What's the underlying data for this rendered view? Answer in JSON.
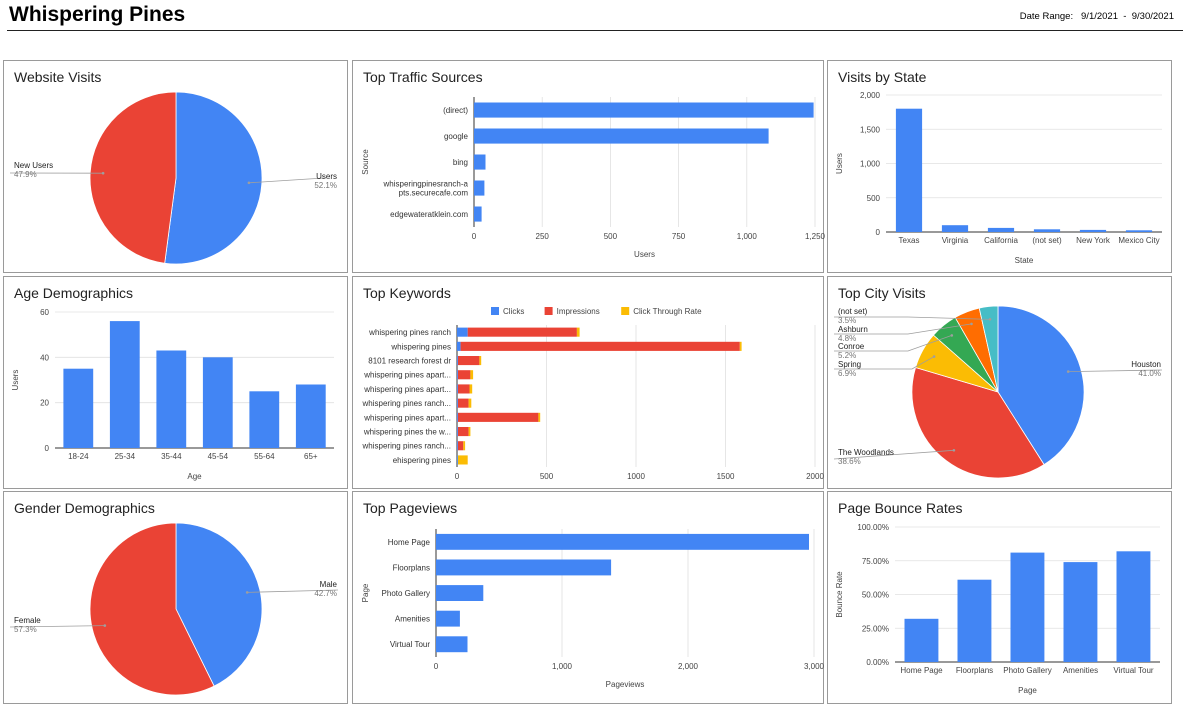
{
  "header": {
    "title": "Whispering Pines",
    "date_range_label": "Date Range:",
    "date_start": "9/1/2021",
    "date_sep": "-",
    "date_end": "9/30/2021"
  },
  "colors": {
    "blue": "#4285f4",
    "red": "#ea4335",
    "yellow": "#fbbc04",
    "green": "#34a853",
    "orange": "#ff6d01",
    "teal": "#46bdc6"
  },
  "panels": {
    "website_visits": "Website Visits",
    "traffic": "Top Traffic Sources",
    "state": "Visits by State",
    "age": "Age Demographics",
    "keywords": "Top Keywords",
    "city": "Top City Visits",
    "gender": "Gender Demographics",
    "pageviews": "Top Pageviews",
    "bounce": "Page Bounce Rates"
  },
  "chart_data": [
    {
      "id": "website_visits",
      "type": "pie",
      "title": "Website Visits",
      "slices": [
        {
          "label": "Users",
          "value": 52.1,
          "pct": "52.1%",
          "color": "#4285f4"
        },
        {
          "label": "New Users",
          "value": 47.9,
          "pct": "47.9%",
          "color": "#ea4335"
        }
      ]
    },
    {
      "id": "traffic",
      "type": "bar",
      "orientation": "horizontal",
      "title": "Top Traffic Sources",
      "categories": [
        "(direct)",
        "google",
        "bing",
        "whisperingpinesranch-apts.securecafe.com",
        "edgewateratklein.com"
      ],
      "category_lines": [
        [
          "(direct)"
        ],
        [
          "google"
        ],
        [
          "bing"
        ],
        [
          "whisperingpinesranch-a",
          "pts.securecafe.com"
        ],
        [
          "edgewateratklein.com"
        ]
      ],
      "values": [
        1245,
        1080,
        42,
        38,
        28
      ],
      "xlabel": "Users",
      "ylabel": "Source",
      "xlim": [
        0,
        1250
      ],
      "ticks": [
        0,
        250,
        500,
        750,
        1000,
        1250
      ],
      "tick_labels": [
        "0",
        "250",
        "500",
        "750",
        "1,000",
        "1,250"
      ]
    },
    {
      "id": "state",
      "type": "bar",
      "title": "Visits by State",
      "categories": [
        "Texas",
        "Virginia",
        "California",
        "(not set)",
        "New York",
        "Mexico City"
      ],
      "values": [
        1800,
        100,
        60,
        40,
        30,
        25
      ],
      "xlabel": "State",
      "ylabel": "Users",
      "ylim": [
        0,
        2000
      ],
      "ticks": [
        0,
        500,
        1000,
        1500,
        2000
      ],
      "tick_labels": [
        "0",
        "500",
        "1,000",
        "1,500",
        "2,000"
      ]
    },
    {
      "id": "age",
      "type": "bar",
      "title": "Age Demographics",
      "categories": [
        "18-24",
        "25-34",
        "35-44",
        "45-54",
        "55-64",
        "65+"
      ],
      "values": [
        35,
        56,
        43,
        40,
        25,
        28
      ],
      "xlabel": "Age",
      "ylabel": "Users",
      "ylim": [
        0,
        60
      ],
      "ticks": [
        0,
        20,
        40,
        60
      ],
      "tick_labels": [
        "0",
        "20",
        "40",
        "60"
      ]
    },
    {
      "id": "keywords",
      "type": "bar",
      "orientation": "horizontal",
      "stacked": true,
      "title": "Top Keywords",
      "categories": [
        "whispering pines ranch",
        "whispering pines",
        "8101 research forest dr",
        "whispering pines apart...",
        "whispering pines apart...",
        "whispering pines ranch...",
        "whispering pines apart...",
        "whispering pines the w...",
        "whispering pines ranch...",
        "ehispering pines"
      ],
      "series": [
        {
          "name": "Clicks",
          "color": "#4285f4",
          "values": [
            60,
            20,
            5,
            5,
            5,
            5,
            5,
            5,
            5,
            5
          ]
        },
        {
          "name": "Impressions",
          "color": "#ea4335",
          "values": [
            610,
            1560,
            120,
            70,
            65,
            60,
            450,
            60,
            30,
            0
          ]
        },
        {
          "name": "Click Through Rate",
          "color": "#fbbc04",
          "values": [
            15,
            10,
            10,
            15,
            15,
            15,
            10,
            10,
            10,
            55
          ]
        }
      ],
      "xlim": [
        0,
        2000
      ],
      "ticks": [
        0,
        500,
        1000,
        1500,
        2000
      ],
      "tick_labels": [
        "0",
        "500",
        "1000",
        "1500",
        "2000"
      ]
    },
    {
      "id": "city",
      "type": "pie",
      "title": "Top City Visits",
      "slices": [
        {
          "label": "Houston",
          "value": 41.0,
          "pct": "41.0%",
          "color": "#4285f4"
        },
        {
          "label": "The Woodlands",
          "value": 38.6,
          "pct": "38.6%",
          "color": "#ea4335"
        },
        {
          "label": "Spring",
          "value": 6.9,
          "pct": "6.9%",
          "color": "#fbbc04"
        },
        {
          "label": "Conroe",
          "value": 5.2,
          "pct": "5.2%",
          "color": "#34a853"
        },
        {
          "label": "Ashburn",
          "value": 4.8,
          "pct": "4.8%",
          "color": "#ff6d01"
        },
        {
          "label": "(not set)",
          "value": 3.5,
          "pct": "3.5%",
          "color": "#46bdc6"
        }
      ]
    },
    {
      "id": "gender",
      "type": "pie",
      "title": "Gender Demographics",
      "slices": [
        {
          "label": "Male",
          "value": 42.7,
          "pct": "42.7%",
          "color": "#4285f4"
        },
        {
          "label": "Female",
          "value": 57.3,
          "pct": "57.3%",
          "color": "#ea4335"
        }
      ]
    },
    {
      "id": "pageviews",
      "type": "bar",
      "orientation": "horizontal",
      "title": "Top Pageviews",
      "categories": [
        "Home Page",
        "Floorplans",
        "Photo Gallery",
        "Amenities",
        "Virtual Tour"
      ],
      "values": [
        2960,
        1390,
        375,
        190,
        250
      ],
      "xlabel": "Pageviews",
      "ylabel": "Page",
      "xlim": [
        0,
        3000
      ],
      "ticks": [
        0,
        1000,
        2000,
        3000
      ],
      "tick_labels": [
        "0",
        "1,000",
        "2,000",
        "3,000"
      ]
    },
    {
      "id": "bounce",
      "type": "bar",
      "title": "Page Bounce Rates",
      "categories": [
        "Home Page",
        "Floorplans",
        "Photo Gallery",
        "Amenities",
        "Virtual Tour"
      ],
      "values": [
        0.32,
        0.61,
        0.81,
        0.74,
        0.82
      ],
      "xlabel": "Page",
      "ylabel": "Bounce Rate",
      "ylim": [
        0,
        1
      ],
      "ticks": [
        0,
        0.25,
        0.5,
        0.75,
        1
      ],
      "tick_labels": [
        "0.00%",
        "25.00%",
        "50.00%",
        "75.00%",
        "100.00%"
      ]
    }
  ]
}
